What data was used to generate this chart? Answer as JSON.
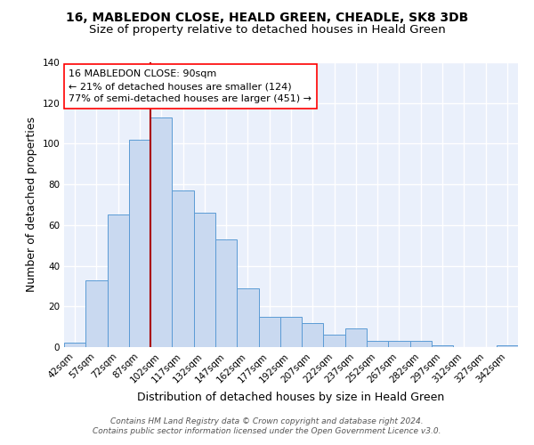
{
  "title1": "16, MABLEDON CLOSE, HEALD GREEN, CHEADLE, SK8 3DB",
  "title2": "Size of property relative to detached houses in Heald Green",
  "xlabel": "Distribution of detached houses by size in Heald Green",
  "ylabel": "Number of detached properties",
  "footer1": "Contains HM Land Registry data © Crown copyright and database right 2024.",
  "footer2": "Contains public sector information licensed under the Open Government Licence v3.0.",
  "annotation_line1": "16 MABLEDON CLOSE: 90sqm",
  "annotation_line2": "← 21% of detached houses are smaller (124)",
  "annotation_line3": "77% of semi-detached houses are larger (451) →",
  "bar_categories": [
    "42sqm",
    "57sqm",
    "72sqm",
    "87sqm",
    "102sqm",
    "117sqm",
    "132sqm",
    "147sqm",
    "162sqm",
    "177sqm",
    "192sqm",
    "207sqm",
    "222sqm",
    "237sqm",
    "252sqm",
    "267sqm",
    "282sqm",
    "297sqm",
    "312sqm",
    "327sqm",
    "342sqm"
  ],
  "bar_values": [
    2,
    33,
    65,
    102,
    113,
    77,
    66,
    53,
    29,
    15,
    15,
    12,
    6,
    9,
    3,
    3,
    3,
    1,
    0,
    0,
    1
  ],
  "bar_color": "#c9d9f0",
  "bar_edge_color": "#5b9bd5",
  "background_color": "#eaf0fb",
  "grid_color": "#ffffff",
  "ylim": [
    0,
    140
  ],
  "yticks": [
    0,
    20,
    40,
    60,
    80,
    100,
    120,
    140
  ],
  "annotation_box_color": "white",
  "annotation_box_edge": "red",
  "red_line_color": "#aa0000",
  "title1_fontsize": 10,
  "title2_fontsize": 9.5,
  "axis_label_fontsize": 9,
  "tick_fontsize": 7.5,
  "annotation_fontsize": 8,
  "footer_fontsize": 6.5,
  "red_line_bar_index": 3.5
}
